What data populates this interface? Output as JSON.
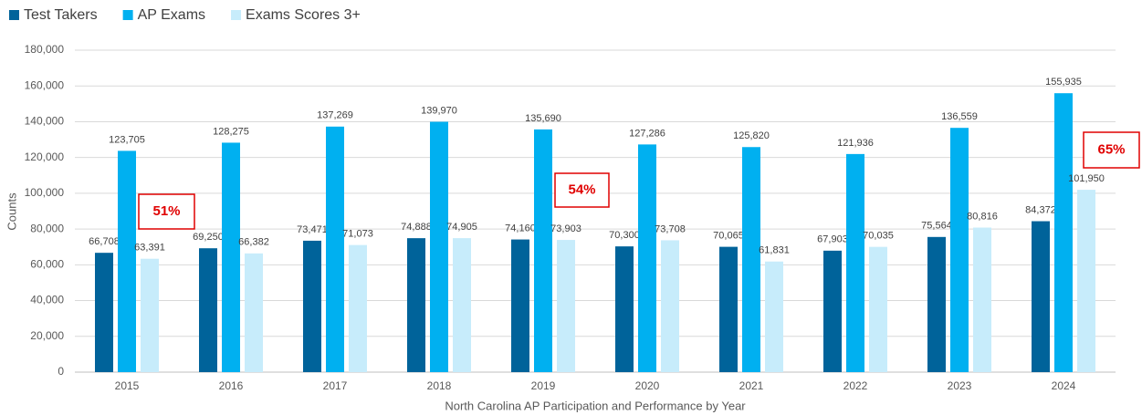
{
  "chart_data": {
    "type": "bar",
    "x_label": "North Carolina AP Participation and Performance by Year",
    "y_label": "Counts",
    "categories": [
      "2015",
      "2016",
      "2017",
      "2018",
      "2019",
      "2020",
      "2021",
      "2022",
      "2023",
      "2024"
    ],
    "series": [
      {
        "name": "Test Takers",
        "color": "#00639a",
        "values": [
          66708,
          69250,
          73471,
          74888,
          74160,
          70300,
          70065,
          67903,
          75564,
          84372
        ],
        "value_labels": [
          "66,708",
          "69,250",
          "73,471",
          "74,888",
          "74,160",
          "70,300",
          "70,065",
          "67,903",
          "75,564",
          "84,372"
        ]
      },
      {
        "name": "AP Exams",
        "color": "#00b0f0",
        "values": [
          123705,
          128275,
          137269,
          139970,
          135690,
          127286,
          125820,
          121936,
          136559,
          155935
        ],
        "value_labels": [
          "123,705",
          "128,275",
          "137,269",
          "139,970",
          "135,690",
          "127,286",
          "125,820",
          "121,936",
          "136,559",
          "155,935"
        ]
      },
      {
        "name": "Exams Scores 3+",
        "color": "#c7ecfb",
        "values": [
          63391,
          66382,
          71073,
          74905,
          73903,
          73708,
          61831,
          70035,
          80816,
          101950
        ],
        "value_labels": [
          "63,391",
          "66,382",
          "71,073",
          "74,905",
          "73,903",
          "73,708",
          "61,831",
          "70,035",
          "80,816",
          "101,950"
        ]
      }
    ],
    "ylim": [
      0,
      180000
    ],
    "yticks": [
      0,
      {
        "value": 20000,
        "label": "20,000"
      },
      {
        "value": 40000,
        "label": "40,000"
      },
      {
        "value": 60000,
        "label": "60,000"
      },
      {
        "value": 80000,
        "label": "80,000"
      },
      {
        "value": 100000,
        "label": "100,000"
      },
      {
        "value": 120000,
        "label": "120,000"
      },
      {
        "value": 140000,
        "label": "140,000"
      },
      {
        "value": 160000,
        "label": "160,000"
      },
      {
        "value": 180000,
        "label": "180,000"
      }
    ],
    "grid": true,
    "legend": "top-left",
    "annotations": [
      "51%",
      "54%",
      "65%"
    ]
  }
}
